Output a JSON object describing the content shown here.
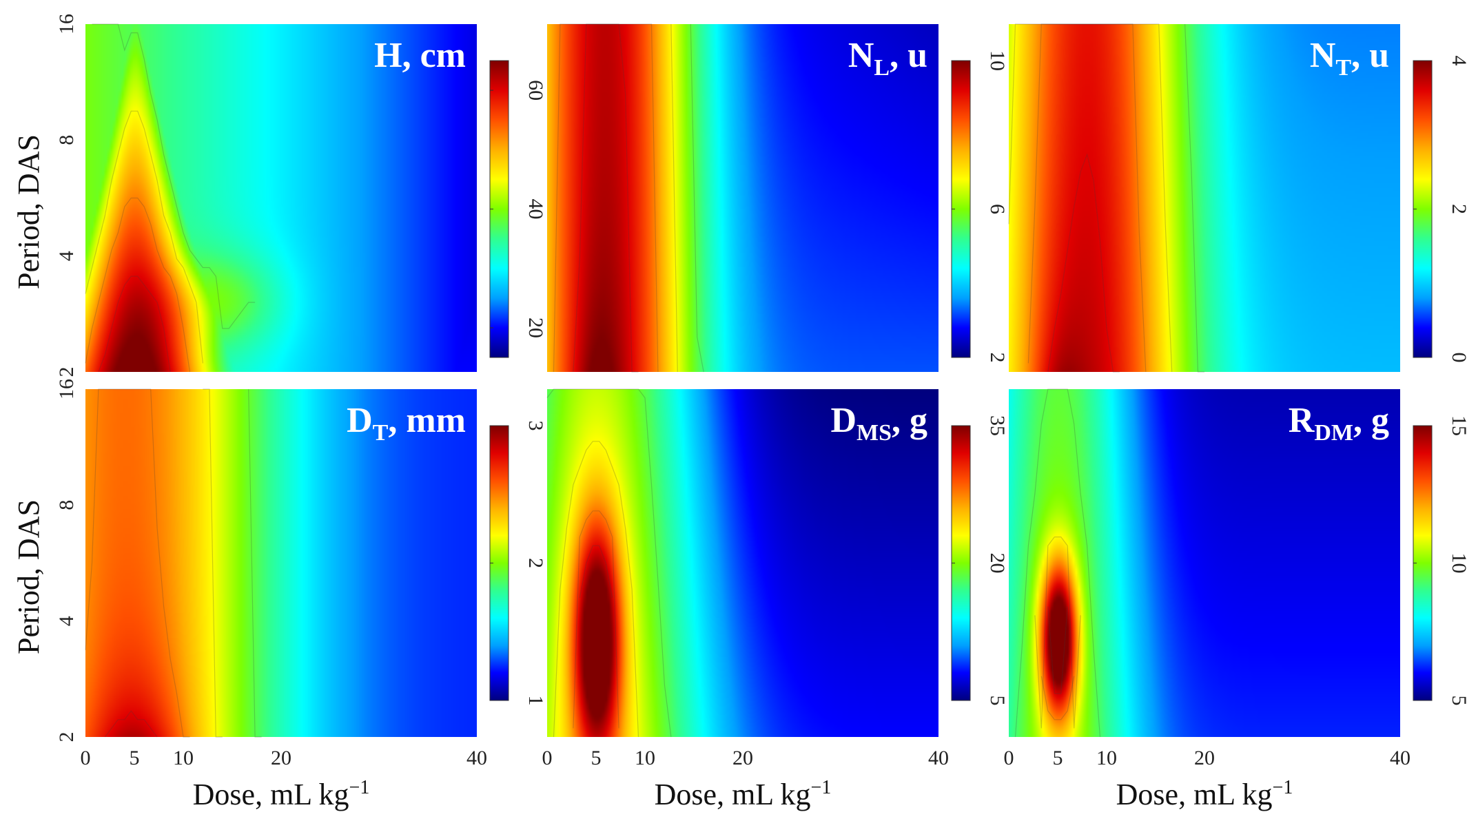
{
  "figure": {
    "colormap": [
      "#00007f",
      "#0000ff",
      "#00a0ff",
      "#00ffff",
      "#30ff90",
      "#7fff00",
      "#ffff00",
      "#ffb000",
      "#ff5000",
      "#e00000",
      "#7f0000"
    ]
  },
  "chart_data": [
    {
      "type": "heatmap",
      "panel": "H",
      "title_main": "H",
      "title_sub": "",
      "title_rest": ", cm",
      "xlabel_main": "Dose, mL kg",
      "xlabel_sup": "−1",
      "ylabel": "Period, DAS",
      "x_ticks": [
        0,
        5,
        10,
        20,
        40
      ],
      "y_ticks": [
        2,
        4,
        8,
        16
      ],
      "x_range": [
        0,
        40
      ],
      "y_range": [
        2,
        16
      ],
      "colorbar": {
        "min": 15,
        "max": 65,
        "ticks": [
          20,
          40,
          60
        ]
      },
      "peak_dose": 5,
      "peak_period": 2,
      "peak_value": 65,
      "description_values": {
        "min_value": 15,
        "max_value": 65
      }
    },
    {
      "type": "heatmap",
      "panel": "NL",
      "title_main": "N",
      "title_sub": "L",
      "title_rest": ", u",
      "xlabel_main": "Dose, mL kg",
      "xlabel_sup": "−1",
      "ylabel": "",
      "x_ticks": [
        0,
        5,
        10,
        20,
        40
      ],
      "y_ticks": [
        2,
        4,
        8,
        16
      ],
      "x_range": [
        0,
        40
      ],
      "y_range": [
        2,
        16
      ],
      "colorbar": {
        "min": 2,
        "max": 10,
        "ticks": [
          2,
          6,
          10
        ]
      },
      "peak_dose": 5,
      "peak_period": 2,
      "peak_value": 10,
      "description_values": {
        "min_value": 2,
        "max_value": 10
      }
    },
    {
      "type": "heatmap",
      "panel": "NT",
      "title_main": "N",
      "title_sub": "T",
      "title_rest": ", u",
      "xlabel_main": "Dose, mL kg",
      "xlabel_sup": "−1",
      "ylabel": "",
      "x_ticks": [
        0,
        5,
        10,
        20,
        40
      ],
      "y_ticks": [
        2,
        4,
        8,
        16
      ],
      "x_range": [
        0,
        40
      ],
      "y_range": [
        2,
        16
      ],
      "colorbar": {
        "min": 0,
        "max": 4,
        "ticks": [
          0,
          2,
          4
        ]
      },
      "peak_dose": 5,
      "peak_period": 2,
      "peak_value": 3.9,
      "description_values": {
        "min_value": 0,
        "max_value": 4
      }
    },
    {
      "type": "heatmap",
      "panel": "DT",
      "title_main": "D",
      "title_sub": "T",
      "title_rest": ", mm",
      "xlabel_main": "Dose, mL kg",
      "xlabel_sup": "−1",
      "ylabel": "Period, DAS",
      "x_ticks": [
        0,
        5,
        10,
        20,
        40
      ],
      "y_ticks": [
        2,
        4,
        8,
        16
      ],
      "x_range": [
        0,
        40
      ],
      "y_range": [
        2,
        16
      ],
      "colorbar": {
        "min": 1,
        "max": 3,
        "ticks": [
          1,
          2,
          3
        ]
      },
      "peak_dose": 5,
      "peak_period": 2,
      "peak_value": 3,
      "description_values": {
        "min_value": 1,
        "max_value": 3
      }
    },
    {
      "type": "heatmap",
      "panel": "DMS",
      "title_main": "D",
      "title_sub": "MS",
      "title_rest": ", g",
      "xlabel_main": "Dose, mL kg",
      "xlabel_sup": "−1",
      "ylabel": "",
      "x_ticks": [
        0,
        5,
        10,
        20,
        40
      ],
      "y_ticks": [
        2,
        4,
        8,
        16
      ],
      "x_range": [
        0,
        40
      ],
      "y_range": [
        2,
        16
      ],
      "colorbar": {
        "min": 5,
        "max": 35,
        "ticks": [
          5,
          20,
          35
        ]
      },
      "peak_dose": 5,
      "peak_period": 4,
      "peak_value": 35,
      "description_values": {
        "min_value": 5,
        "max_value": 35
      }
    },
    {
      "type": "heatmap",
      "panel": "RDM",
      "title_main": "R",
      "title_sub": "DM",
      "title_rest": ", g",
      "xlabel_main": "Dose, mL kg",
      "xlabel_sup": "−1",
      "ylabel": "",
      "x_ticks": [
        0,
        5,
        10,
        20,
        40
      ],
      "y_ticks": [
        2,
        4,
        8,
        16
      ],
      "x_range": [
        0,
        40
      ],
      "y_range": [
        2,
        16
      ],
      "colorbar": {
        "min": 5,
        "max": 15,
        "ticks": [
          5,
          10,
          15
        ]
      },
      "peak_dose": 5,
      "peak_period": 4,
      "peak_value": 15,
      "description_values": {
        "min_value": 5,
        "max_value": 15
      }
    }
  ]
}
